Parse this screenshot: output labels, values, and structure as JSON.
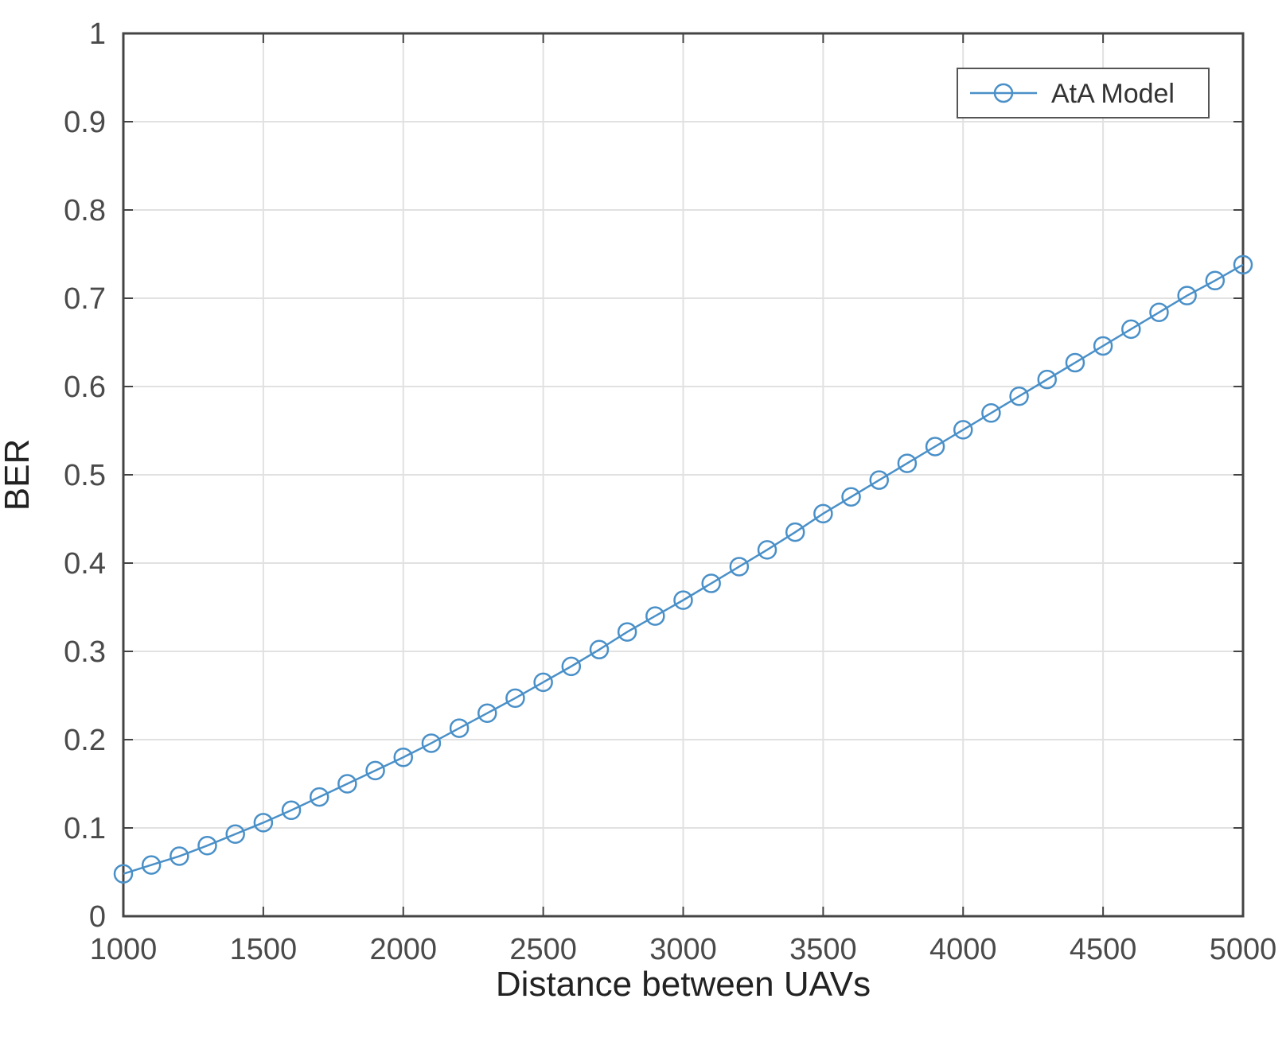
{
  "chart_data": {
    "type": "line",
    "title": "",
    "xlabel": "Distance between UAVs",
    "ylabel": "BER",
    "xlim": [
      1000,
      5000
    ],
    "ylim": [
      0,
      1
    ],
    "xticks": [
      "1000",
      "1500",
      "2000",
      "2500",
      "3000",
      "3500",
      "4000",
      "4500",
      "5000"
    ],
    "yticks": [
      "0",
      "0.1",
      "0.2",
      "0.3",
      "0.4",
      "0.5",
      "0.6",
      "0.7",
      "0.8",
      "0.9",
      "1"
    ],
    "grid": true,
    "legend": {
      "position": "top-right",
      "entries": [
        "AtA Model"
      ]
    },
    "colors": {
      "series": "#4a90c8",
      "axis": "#444444",
      "grid": "#e1e1e1"
    },
    "marker": "circle-open",
    "series": [
      {
        "name": "AtA Model",
        "x": [
          1000,
          1100,
          1200,
          1300,
          1400,
          1500,
          1600,
          1700,
          1800,
          1900,
          2000,
          2100,
          2200,
          2300,
          2400,
          2500,
          2600,
          2700,
          2800,
          2900,
          3000,
          3100,
          3200,
          3300,
          3400,
          3500,
          3600,
          3700,
          3800,
          3900,
          4000,
          4100,
          4200,
          4300,
          4400,
          4500,
          4600,
          4700,
          4800,
          4900,
          5000
        ],
        "y": [
          0.048,
          0.058,
          0.068,
          0.08,
          0.093,
          0.106,
          0.12,
          0.135,
          0.15,
          0.165,
          0.18,
          0.196,
          0.213,
          0.23,
          0.247,
          0.265,
          0.283,
          0.302,
          0.322,
          0.34,
          0.358,
          0.377,
          0.396,
          0.415,
          0.435,
          0.456,
          0.475,
          0.494,
          0.513,
          0.532,
          0.551,
          0.57,
          0.589,
          0.608,
          0.627,
          0.646,
          0.665,
          0.684,
          0.703,
          0.72,
          0.738
        ]
      }
    ]
  }
}
